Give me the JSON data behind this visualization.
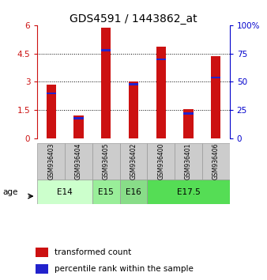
{
  "title": "GDS4591 / 1443862_at",
  "samples": [
    "GSM936403",
    "GSM936404",
    "GSM936405",
    "GSM936402",
    "GSM936400",
    "GSM936401",
    "GSM936406"
  ],
  "transformed_counts": [
    2.85,
    1.2,
    5.85,
    3.0,
    4.85,
    1.55,
    4.35
  ],
  "percentile_ranks": [
    40,
    18,
    78,
    48,
    70,
    22,
    54
  ],
  "ages": [
    {
      "label": "E14",
      "cols": [
        0,
        1
      ],
      "color": "#ccffcc"
    },
    {
      "label": "E15",
      "cols": [
        2
      ],
      "color": "#99ee99"
    },
    {
      "label": "E16",
      "cols": [
        3
      ],
      "color": "#88dd88"
    },
    {
      "label": "E17.5",
      "cols": [
        4,
        5,
        6
      ],
      "color": "#55dd55"
    }
  ],
  "ylim_left": [
    0,
    6
  ],
  "ylim_right": [
    0,
    100
  ],
  "yticks_left": [
    0,
    1.5,
    3,
    4.5,
    6
  ],
  "ytick_labels_left": [
    "0",
    "1.5",
    "3",
    "4.5",
    "6"
  ],
  "yticks_right": [
    0,
    25,
    50,
    75,
    100
  ],
  "ytick_labels_right": [
    "0",
    "25",
    "50",
    "75",
    "100%"
  ],
  "bar_color_red": "#cc1111",
  "bar_color_blue": "#2222cc",
  "bar_width": 0.35,
  "bg_color": "#ffffff",
  "legend_red": "transformed count",
  "legend_blue": "percentile rank within the sample"
}
